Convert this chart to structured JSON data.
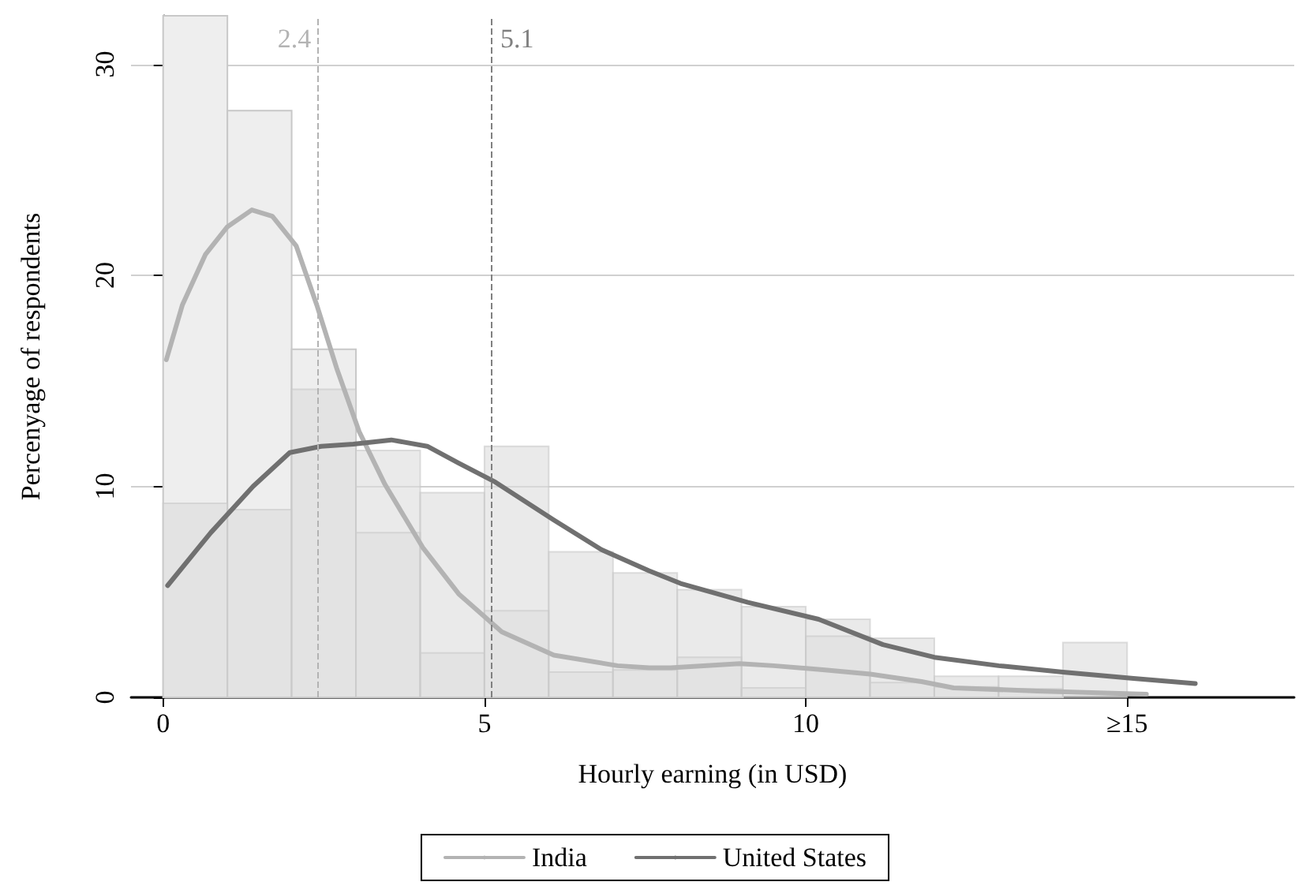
{
  "chart_data": {
    "type": "histogram",
    "xlabel": "Hourly earning (in USD)",
    "ylabel": "Percenyage of respondents",
    "bins": [
      0,
      1,
      2,
      3,
      4,
      5,
      6,
      7,
      8,
      9,
      10,
      11,
      12,
      13,
      14,
      15
    ],
    "series": [
      {
        "color": "#eeeeee",
        "values": [
          32.3,
          27.8,
          16.5,
          7.8,
          2.1,
          4.1,
          1.2,
          1.3,
          1.9,
          0.45,
          2.9,
          0.7,
          0.5,
          0.4,
          null
        ]
      },
      {
        "color": "#dcdcdc",
        "values": [
          9.2,
          8.9,
          14.6,
          11.7,
          9.7,
          11.9,
          6.9,
          5.9,
          5.1,
          4.3,
          3.7,
          2.8,
          1.0,
          1.0,
          2.6
        ]
      },
      {
        "type": "line",
        "name": "India",
        "color": "#b3b3b3",
        "x": [
          0.05,
          0.3,
          0.66,
          1.0,
          1.38,
          1.7,
          2.07,
          2.39,
          2.7,
          3.05,
          3.45,
          4.04,
          4.6,
          5.27,
          6.08,
          7.07,
          7.56,
          7.9,
          8.97,
          9.5,
          10.3,
          11.0,
          11.8,
          12.3,
          13.6,
          15.3
        ],
        "values": [
          16.0,
          18.6,
          21.0,
          22.3,
          23.1,
          22.8,
          21.4,
          18.6,
          15.6,
          12.6,
          10.1,
          7.1,
          4.9,
          3.1,
          2.0,
          1.5,
          1.4,
          1.4,
          1.6,
          1.5,
          1.3,
          1.1,
          0.75,
          0.45,
          0.3,
          0.15
        ]
      },
      {
        "type": "line",
        "name": "United States",
        "color": "#707070",
        "x": [
          0.07,
          0.74,
          1.4,
          1.97,
          2.46,
          2.96,
          3.55,
          4.11,
          4.6,
          5.17,
          6.08,
          6.82,
          7.56,
          8.05,
          9.1,
          10.2,
          11.2,
          12.0,
          13.0,
          14.0,
          15.1,
          16.06
        ],
        "values": [
          5.3,
          7.8,
          10.0,
          11.6,
          11.9,
          12.0,
          12.2,
          11.9,
          11.1,
          10.2,
          8.4,
          7.0,
          6.0,
          5.4,
          4.5,
          3.7,
          2.5,
          1.9,
          1.5,
          1.2,
          0.9,
          0.65
        ]
      }
    ],
    "xlim": [
      -0.5,
      17.6
    ],
    "xticks": [
      0,
      5,
      10,
      {
        "value": 15,
        "label": "≥15"
      }
    ],
    "ylim": [
      0,
      32.3
    ],
    "yticks": [
      0,
      10,
      20,
      30
    ],
    "ref_lines": [
      {
        "axis": "x",
        "value": 2.4,
        "label": "2.4",
        "color": "#b3b3b3",
        "line_style": "dashed"
      },
      {
        "axis": "x",
        "value": 5.1,
        "label": "5.1",
        "color": "#808080",
        "line_style": "dashed"
      }
    ],
    "grid": "y",
    "legend": "bottom",
    "marker": "none",
    "line_style": "solid"
  }
}
